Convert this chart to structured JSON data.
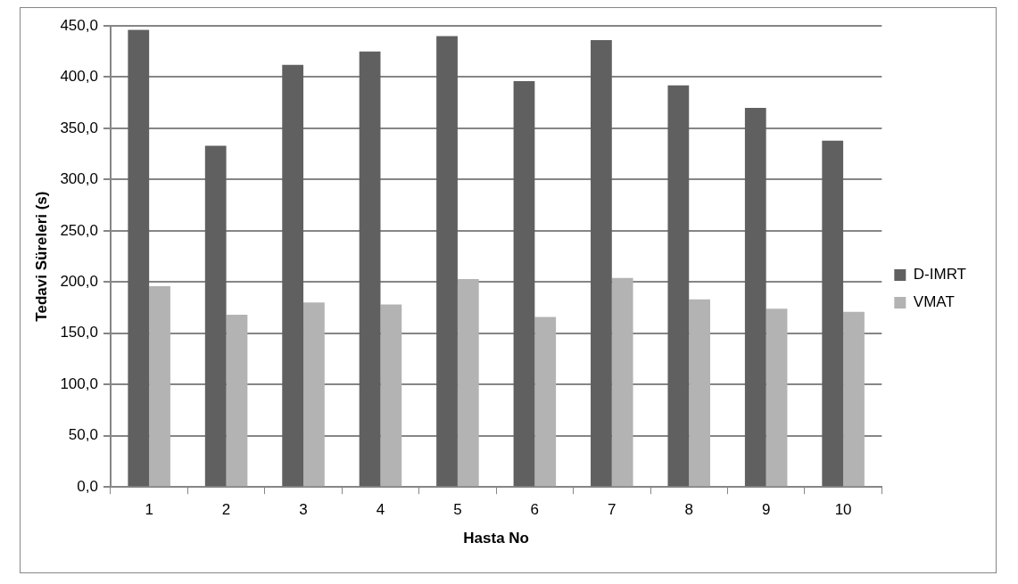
{
  "chart_data": {
    "type": "bar",
    "xlabel": "Hasta No",
    "ylabel": "Tedavi Süreleri (s)",
    "categories": [
      "1",
      "2",
      "3",
      "4",
      "5",
      "6",
      "7",
      "8",
      "9",
      "10"
    ],
    "series": [
      {
        "name": "D-IMRT",
        "color": "#606060",
        "values": [
          446,
          333,
          412,
          425,
          440,
          396,
          436,
          392,
          370,
          338
        ]
      },
      {
        "name": "VMAT",
        "color": "#b3b3b3",
        "values": [
          196,
          168,
          180,
          178,
          203,
          166,
          204,
          183,
          174,
          171
        ]
      }
    ],
    "ylim": [
      0,
      450
    ],
    "yticks": [
      {
        "value": 0,
        "label": "0,0"
      },
      {
        "value": 50,
        "label": "50,0"
      },
      {
        "value": 100,
        "label": "100,0"
      },
      {
        "value": 150,
        "label": "150,0"
      },
      {
        "value": 200,
        "label": "200,0"
      },
      {
        "value": 250,
        "label": "250,0"
      },
      {
        "value": 300,
        "label": "300,0"
      },
      {
        "value": 350,
        "label": "350,0"
      },
      {
        "value": 400,
        "label": "400,0"
      },
      {
        "value": 450,
        "label": "450,0"
      }
    ],
    "grid": "y",
    "legend": "right"
  }
}
